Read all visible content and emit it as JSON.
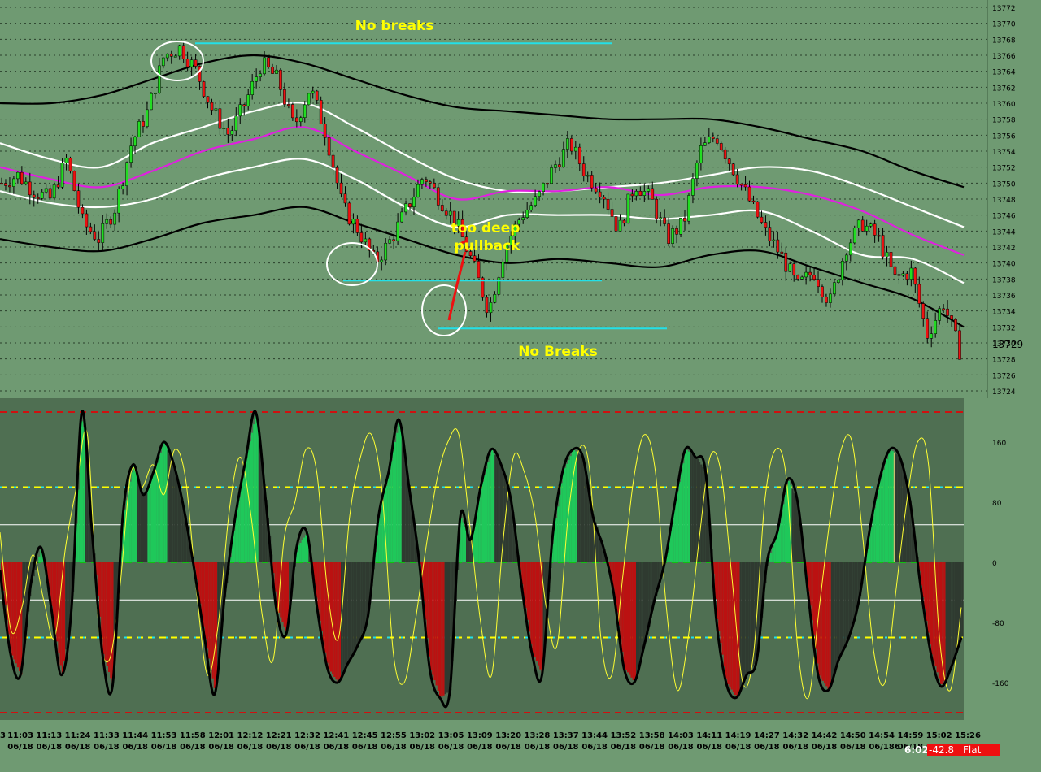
{
  "chart_data": [
    {
      "type": "candlestick",
      "panel": "price",
      "ylim": [
        13722,
        13773
      ],
      "y_ticks": [
        13724,
        13726,
        13728,
        13730,
        13732,
        13734,
        13736,
        13738,
        13740,
        13742,
        13744,
        13746,
        13748,
        13750,
        13752,
        13754,
        13756,
        13758,
        13760,
        13762,
        13764,
        13766,
        13768,
        13770,
        13772
      ],
      "last_price": "13729",
      "annotations": [
        {
          "text": "No breaks",
          "color": "#ffff00"
        },
        {
          "text": "too deep pullback",
          "color": "#ffff00"
        },
        {
          "text": "No Breaks",
          "color": "#ffff00"
        }
      ],
      "support_resistance": [
        13767.5,
        13737.8,
        13731.8
      ],
      "lines": [
        {
          "role": "outer-upper-band",
          "color": "#000000",
          "values": [
            13760,
            13760,
            13761,
            13763,
            13765,
            13766,
            13765,
            13763,
            13761,
            13759.5,
            13759,
            13758.5,
            13758,
            13758,
            13758,
            13757,
            13755.5,
            13754,
            13751.5,
            13749.5
          ]
        },
        {
          "role": "inner-upper-band",
          "color": "#ffffff",
          "values": [
            13755,
            13753,
            13752,
            13755,
            13757,
            13759,
            13760,
            13757,
            13753.5,
            13750.5,
            13749,
            13749,
            13749.5,
            13750,
            13751,
            13752,
            13751.5,
            13749.5,
            13747,
            13744.5
          ]
        },
        {
          "role": "midline",
          "color": "#e020e0",
          "values": [
            13752,
            13750.5,
            13749.5,
            13751.5,
            13754,
            13755.5,
            13757,
            13754,
            13751,
            13748,
            13749,
            13749,
            13749.5,
            13748.5,
            13749.5,
            13749.5,
            13748.5,
            13746.5,
            13743.5,
            13741
          ]
        },
        {
          "role": "inner-lower-band",
          "color": "#ffffff",
          "values": [
            13749,
            13747.5,
            13747,
            13748,
            13750.5,
            13752,
            13753,
            13750.5,
            13747,
            13744.5,
            13746,
            13746,
            13746,
            13745.5,
            13746,
            13746.5,
            13744,
            13741,
            13740.5,
            13737.5
          ]
        },
        {
          "role": "outer-lower-band",
          "color": "#000000",
          "values": [
            13743,
            13742,
            13741.5,
            13743,
            13745,
            13746,
            13747,
            13745,
            13743,
            13741,
            13740,
            13740.5,
            13740,
            13739.5,
            13741,
            13741.5,
            13739.5,
            13737.5,
            13735.5,
            13732
          ]
        }
      ],
      "closes": [
        13750,
        13751,
        13749,
        13748,
        13753,
        13745,
        13743,
        13747,
        13755,
        13759,
        13766,
        13767,
        13764,
        13759,
        13756,
        13760,
        13765,
        13763,
        13757,
        13762,
        13756,
        13747,
        13744,
        13740,
        13743,
        13747,
        13751,
        13748,
        13745,
        13740,
        13734,
        13742,
        13746,
        13748,
        13752,
        13755,
        13751,
        13749,
        13744,
        13750,
        13748,
        13743,
        13745,
        13754,
        13756,
        13752,
        13748,
        13744,
        13741,
        13737,
        13739,
        13735,
        13742,
        13745,
        13743,
        13738,
        13739,
        13731,
        13735,
        13729
      ]
    },
    {
      "type": "oscillator",
      "panel": "indicator",
      "ylim": [
        -200,
        200
      ],
      "y_ticks": [
        160,
        80,
        0,
        -80,
        -160
      ],
      "reference_lines": [
        {
          "value": 200,
          "color": "#d01010"
        },
        {
          "value": 100,
          "color": "#ffff00"
        },
        {
          "value": 50,
          "color": "#ffffff"
        },
        {
          "value": 0,
          "color": "#10c010"
        },
        {
          "value": -50,
          "color": "#ffffff"
        },
        {
          "value": -100,
          "color": "#ffff00"
        },
        {
          "value": -200,
          "color": "#d01010"
        }
      ],
      "main_line": [
        -10,
        -120,
        -150,
        -30,
        20,
        -60,
        -150,
        -60,
        200,
        40,
        -120,
        -165,
        60,
        130,
        90,
        120,
        160,
        130,
        70,
        -10,
        -100,
        -175,
        -40,
        60,
        135,
        200,
        80,
        -60,
        -95,
        20,
        40,
        -60,
        -140,
        -160,
        -135,
        -110,
        -70,
        60,
        120,
        190,
        100,
        0,
        -140,
        -180,
        -170,
        60,
        30,
        100,
        150,
        130,
        80,
        -30,
        -120,
        -150,
        30,
        120,
        150,
        140,
        60,
        20,
        -40,
        -140,
        -160,
        -110,
        -50,
        0,
        80,
        150,
        140,
        120,
        -70,
        -160,
        -180,
        -150,
        -130,
        0,
        40,
        110,
        80,
        -40,
        -150,
        -170,
        -130,
        -100,
        -50,
        40,
        110,
        150,
        140,
        80,
        -30,
        -120,
        -165,
        -140,
        -100
      ],
      "signal_line": [
        40,
        -90,
        -60,
        10,
        -50,
        -100,
        20,
        100,
        170,
        -80,
        -130,
        -30,
        120,
        100,
        130,
        90,
        150,
        110,
        -40,
        -150,
        -80,
        70,
        140,
        60,
        -70,
        -130,
        30,
        80,
        150,
        120,
        -40,
        -100,
        60,
        140,
        170,
        90,
        -120,
        -160,
        -80,
        20,
        110,
        160,
        170,
        50,
        -80,
        -150,
        20,
        140,
        120,
        60,
        -60,
        -110,
        60,
        150,
        120,
        -100,
        -150,
        -20,
        110,
        170,
        120,
        -60,
        -170,
        -100,
        30,
        140,
        120,
        -20,
        -160,
        -120,
        80,
        150,
        110,
        -110,
        -180,
        -60,
        60,
        150,
        160,
        30,
        -120,
        -160,
        -40,
        80,
        160,
        130,
        -100,
        -170,
        -60
      ],
      "status": {
        "countdown": "6:02",
        "value": "-42.8",
        "state": "Flat"
      }
    }
  ],
  "time_axis": {
    "labels": [
      "11:03",
      "11:13",
      "11:24",
      "11:33",
      "11:44",
      "11:53",
      "11:58",
      "12:01",
      "12:12",
      "12:21",
      "12:32",
      "12:41",
      "12:45",
      "12:55",
      "13:02",
      "13:05",
      "13:09",
      "13:20",
      "13:28",
      "13:37",
      "13:44",
      "13:52",
      "13:58",
      "14:03",
      "14:11",
      "14:19",
      "14:27",
      "14:32",
      "14:42",
      "14:50",
      "14:54",
      "14:59",
      "15:02",
      "15:26"
    ],
    "date": "06/18",
    "edge_left_char": "3",
    "edge_right_char": "6"
  }
}
